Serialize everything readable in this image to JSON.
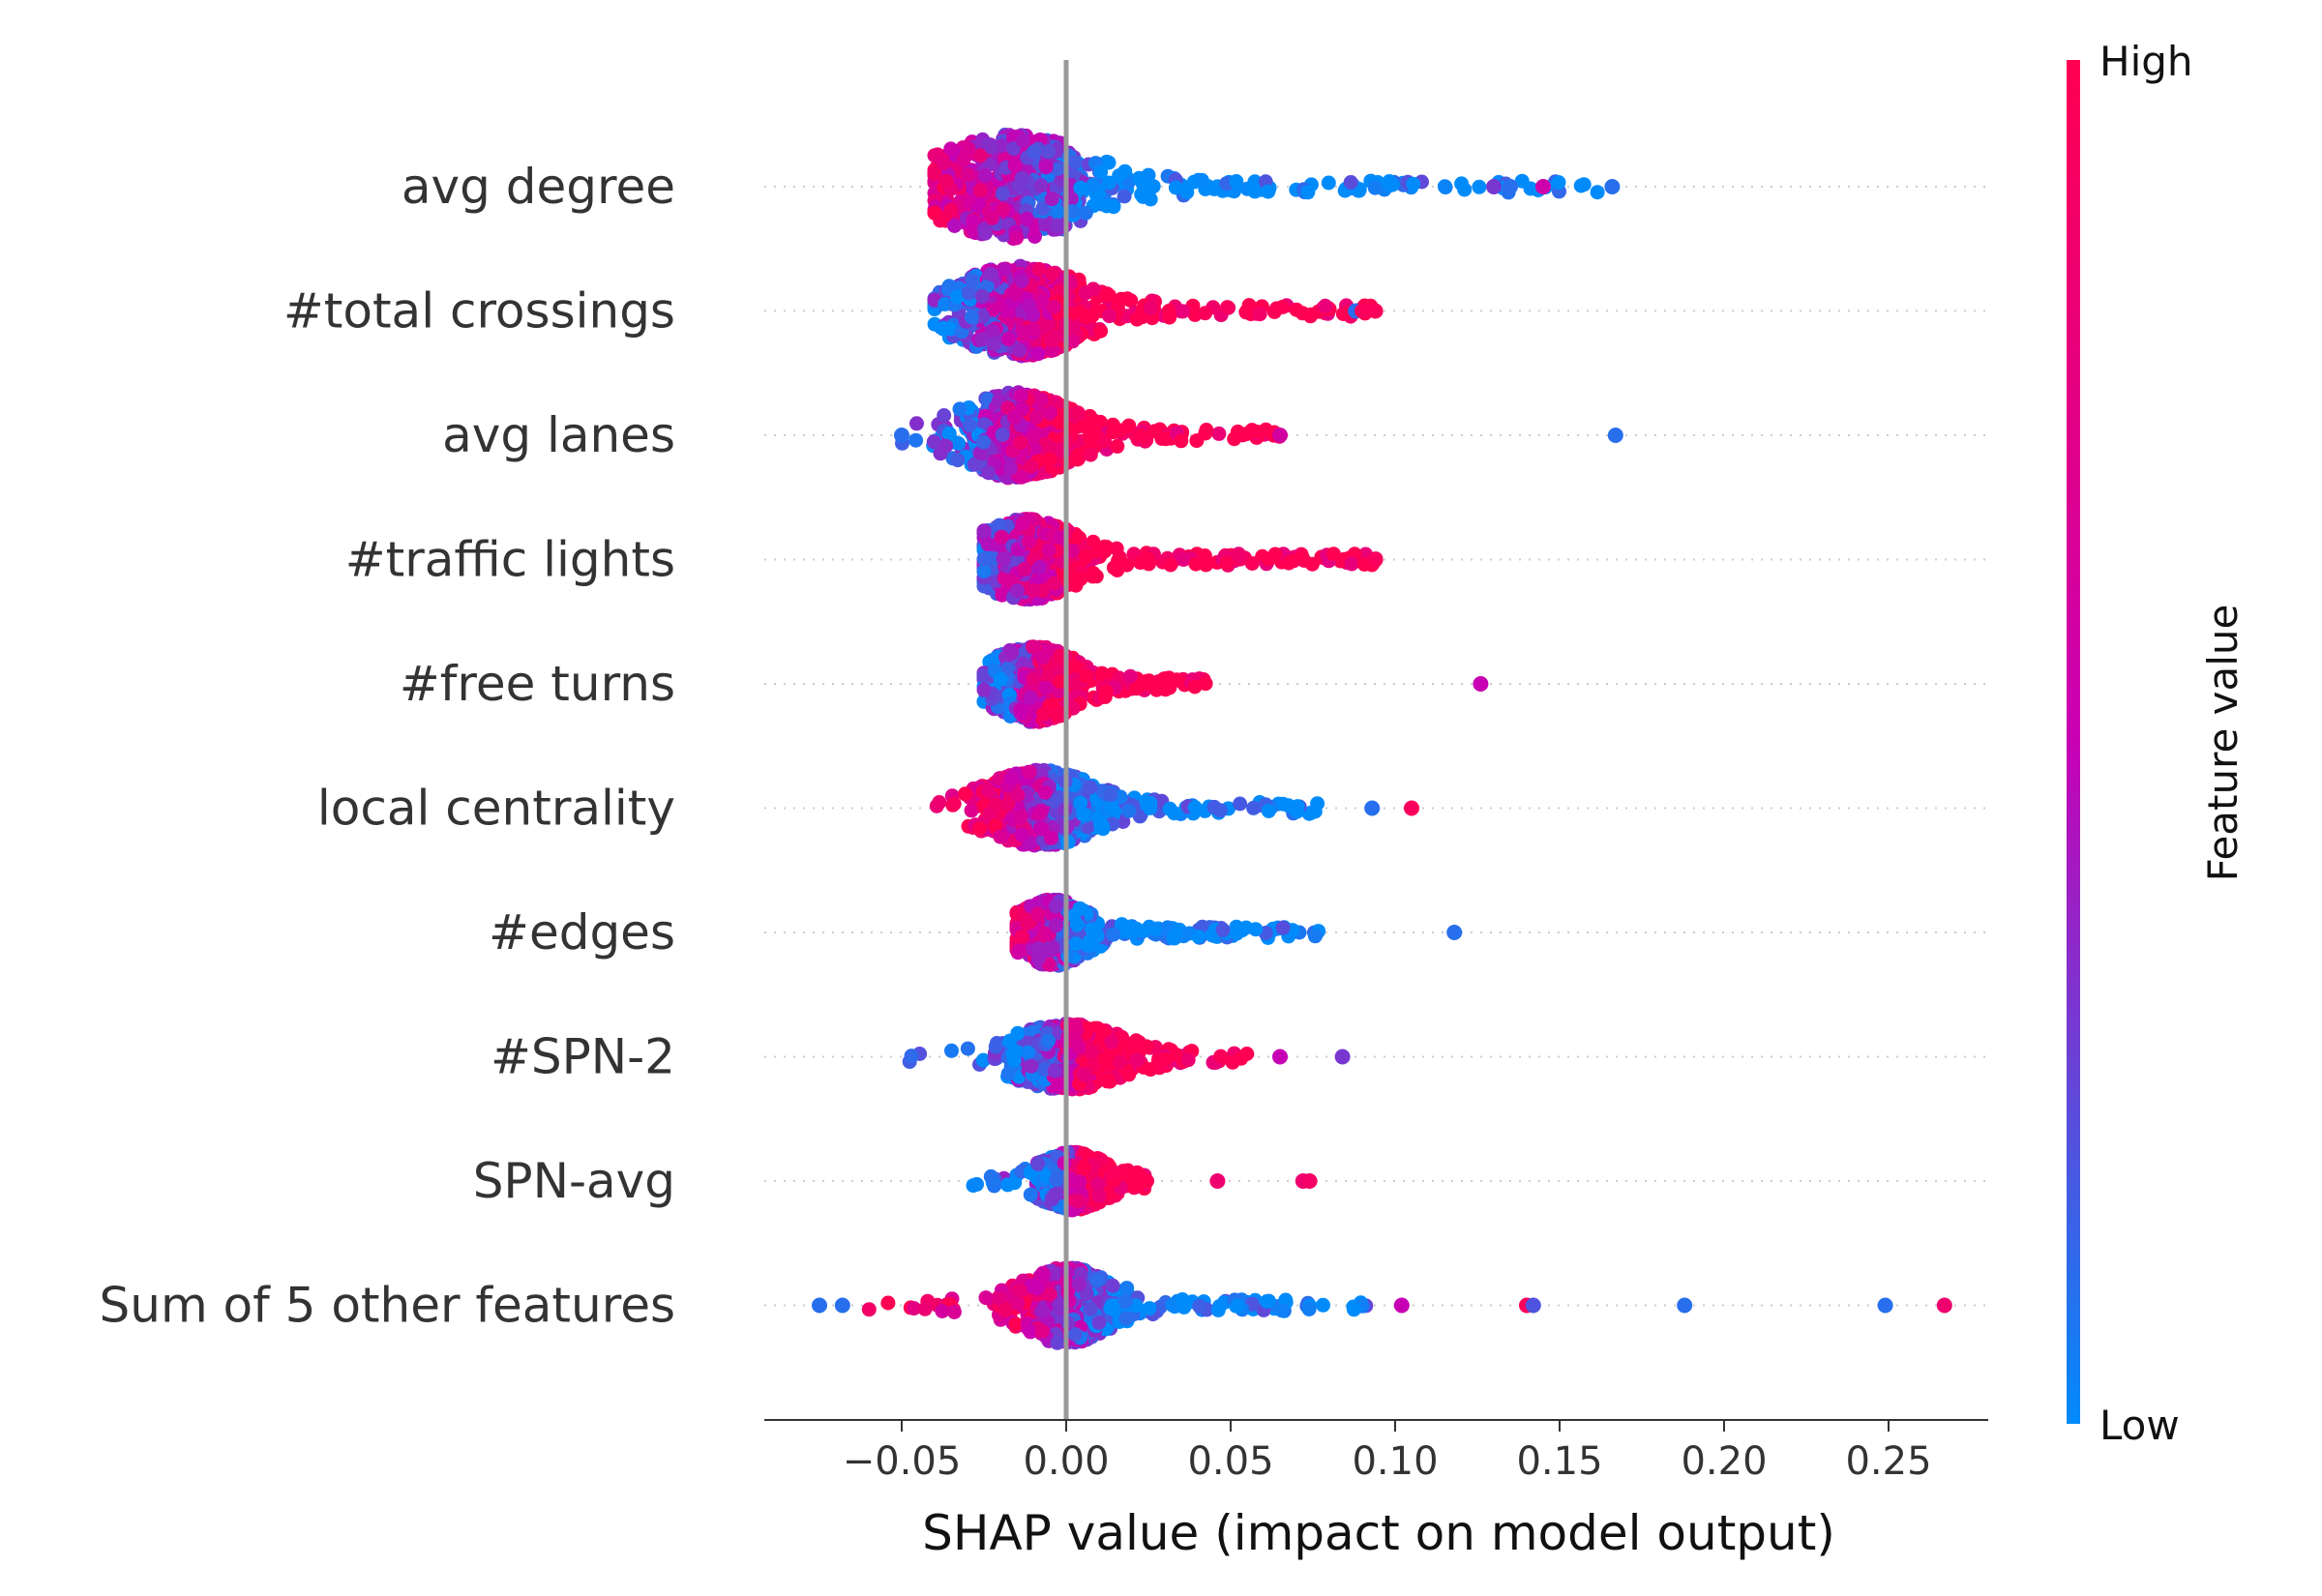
{
  "chart_data": {
    "type": "scatter",
    "subtype": "shap-beeswarm-summary",
    "title": "",
    "xlabel": "SHAP value (impact on model output)",
    "ylabel": "",
    "xlim": [
      -0.09,
      0.285
    ],
    "xticks": [
      -0.05,
      0.0,
      0.05,
      0.1,
      0.15,
      0.2,
      0.25
    ],
    "xtick_labels": [
      "−0.05",
      "0.00",
      "0.05",
      "0.10",
      "0.15",
      "0.20",
      "0.25"
    ],
    "zero_line": 0.0,
    "grid": false,
    "colorbar": {
      "title": "Feature value",
      "high_label": "High",
      "low_label": "Low",
      "high_color": "#ff0052",
      "mid_color": "#c800b4",
      "low_color": "#008bfb"
    },
    "features": [
      {
        "name": "avg degree",
        "center": -0.016,
        "spread": 0.014,
        "min": -0.04,
        "max": 0.167,
        "pos_color": "low",
        "width": 1.0,
        "outliers": [
          {
            "x": 0.13,
            "c": 0.3
          },
          {
            "x": 0.135,
            "c": 0.1
          },
          {
            "x": 0.145,
            "c": 0.55
          },
          {
            "x": 0.166,
            "c": 0.1
          }
        ]
      },
      {
        "name": "#total crossings",
        "center": -0.014,
        "spread": 0.012,
        "min": -0.04,
        "max": 0.095,
        "pos_color": "high",
        "width": 0.85,
        "outliers": [
          {
            "x": 0.088,
            "c": 0.1
          },
          {
            "x": 0.09,
            "c": 0.95
          },
          {
            "x": 0.094,
            "c": 0.95
          }
        ]
      },
      {
        "name": "avg lanes",
        "center": -0.015,
        "spread": 0.01,
        "min": -0.05,
        "max": 0.065,
        "pos_color": "high",
        "width": 0.8,
        "outliers": [
          {
            "x": -0.05,
            "c": 0.1
          },
          {
            "x": 0.065,
            "c": 0.6
          },
          {
            "x": 0.167,
            "c": 0.1
          }
        ]
      },
      {
        "name": "#traffic lights",
        "center": -0.012,
        "spread": 0.009,
        "min": -0.025,
        "max": 0.095,
        "pos_color": "high",
        "width": 0.75,
        "outliers": [
          {
            "x": 0.094,
            "c": 0.95
          }
        ]
      },
      {
        "name": "#free turns",
        "center": -0.01,
        "spread": 0.008,
        "min": -0.025,
        "max": 0.043,
        "pos_color": "high",
        "width": 0.7,
        "outliers": [
          {
            "x": 0.126,
            "c": 0.5
          }
        ]
      },
      {
        "name": "local centrality",
        "center": -0.008,
        "spread": 0.01,
        "min": -0.04,
        "max": 0.077,
        "pos_color": "low",
        "width": 0.7,
        "outliers": [
          {
            "x": 0.093,
            "c": 0.1
          },
          {
            "x": 0.105,
            "c": 0.95
          }
        ]
      },
      {
        "name": "#edges",
        "center": -0.004,
        "spread": 0.006,
        "min": -0.015,
        "max": 0.078,
        "pos_color": "low",
        "width": 0.6,
        "outliers": [
          {
            "x": 0.118,
            "c": 0.1
          }
        ]
      },
      {
        "name": "#SPN-2",
        "center": 0.0,
        "spread": 0.01,
        "min": -0.048,
        "max": 0.055,
        "pos_color": "high",
        "width": 0.6,
        "outliers": [
          {
            "x": 0.065,
            "c": 0.5
          },
          {
            "x": 0.084,
            "c": 0.3
          }
        ]
      },
      {
        "name": "SPN-avg",
        "center": 0.002,
        "spread": 0.006,
        "min": -0.03,
        "max": 0.025,
        "pos_color": "high",
        "width": 0.5,
        "outliers": [
          {
            "x": 0.046,
            "c": 0.85
          },
          {
            "x": 0.072,
            "c": 0.85
          },
          {
            "x": 0.074,
            "c": 0.9
          }
        ]
      },
      {
        "name": "Sum of 5 other features",
        "center": 0.0,
        "spread": 0.008,
        "min": -0.06,
        "max": 0.092,
        "pos_color": "low",
        "width": 0.7,
        "outliers": [
          {
            "x": -0.075,
            "c": 0.1
          },
          {
            "x": -0.068,
            "c": 0.1
          },
          {
            "x": 0.102,
            "c": 0.5
          },
          {
            "x": 0.14,
            "c": 0.95
          },
          {
            "x": 0.142,
            "c": 0.2
          },
          {
            "x": 0.188,
            "c": 0.1
          },
          {
            "x": 0.249,
            "c": 0.1
          },
          {
            "x": 0.267,
            "c": 0.85
          }
        ]
      }
    ]
  }
}
